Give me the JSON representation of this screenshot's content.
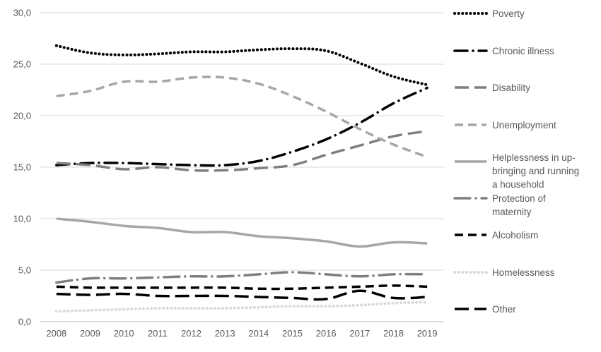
{
  "chart_data": {
    "type": "line",
    "title": "",
    "xlabel": "",
    "ylabel": "",
    "x": [
      "2008",
      "2009",
      "2010",
      "2011",
      "2012",
      "2013",
      "2014",
      "2015",
      "2016",
      "2017",
      "2018",
      "2019"
    ],
    "y_ticks": [
      "0,0",
      "5,0",
      "10,0",
      "15,0",
      "20,0",
      "25,0",
      "30,0"
    ],
    "y_tick_values": [
      0,
      5,
      10,
      15,
      20,
      25,
      30
    ],
    "ylim": [
      0,
      30
    ],
    "grid": "horizontal",
    "legend_position": "right",
    "series": [
      {
        "name": "Poverty",
        "color": "#000000",
        "style": "dotted",
        "values": [
          26.8,
          26.1,
          25.9,
          26.0,
          26.2,
          26.2,
          26.4,
          26.5,
          26.3,
          25.1,
          23.8,
          23.0
        ]
      },
      {
        "name": "Chronic illness",
        "color": "#000000",
        "style": "dash-dot",
        "values": [
          15.2,
          15.4,
          15.4,
          15.3,
          15.2,
          15.2,
          15.6,
          16.5,
          17.7,
          19.3,
          21.2,
          22.7
        ]
      },
      {
        "name": "Disability",
        "color": "#7f7f7f",
        "style": "long-dash",
        "values": [
          15.4,
          15.2,
          14.8,
          15.0,
          14.7,
          14.7,
          14.9,
          15.2,
          16.2,
          17.1,
          18.0,
          18.5
        ]
      },
      {
        "name": "Unemployment",
        "color": "#a6a6a6",
        "style": "dash",
        "values": [
          21.9,
          22.4,
          23.3,
          23.3,
          23.7,
          23.7,
          23.1,
          21.9,
          20.4,
          18.7,
          17.2,
          16.0
        ]
      },
      {
        "name": "Helplessness in up-bringing and running a household",
        "name_lines": [
          "Helplessness in up-",
          "bringing and running",
          "a household"
        ],
        "color": "#a6a6a6",
        "style": "solid",
        "values": [
          10.0,
          9.7,
          9.3,
          9.1,
          8.7,
          8.7,
          8.3,
          8.1,
          7.8,
          7.3,
          7.7,
          7.6
        ]
      },
      {
        "name": "Protection of maternity",
        "name_lines": [
          "Protection of",
          "maternity"
        ],
        "color": "#7f7f7f",
        "style": "long-dash-dot",
        "values": [
          3.8,
          4.2,
          4.2,
          4.3,
          4.4,
          4.4,
          4.6,
          4.8,
          4.6,
          4.4,
          4.6,
          4.6
        ]
      },
      {
        "name": "Alcoholism",
        "color": "#000000",
        "style": "dash",
        "values": [
          3.4,
          3.3,
          3.3,
          3.3,
          3.3,
          3.3,
          3.2,
          3.2,
          3.3,
          3.4,
          3.5,
          3.4
        ]
      },
      {
        "name": "Homelessness",
        "color": "#d9d9d9",
        "style": "dotted",
        "values": [
          1.0,
          1.1,
          1.2,
          1.3,
          1.3,
          1.3,
          1.4,
          1.5,
          1.5,
          1.6,
          1.8,
          1.9
        ]
      },
      {
        "name": "Other",
        "color": "#000000",
        "style": "long-dash",
        "values": [
          2.7,
          2.6,
          2.7,
          2.5,
          2.5,
          2.5,
          2.4,
          2.3,
          2.2,
          3.0,
          2.3,
          2.4
        ]
      }
    ]
  }
}
